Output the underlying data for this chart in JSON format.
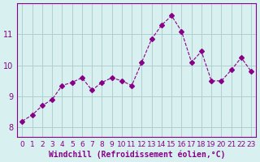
{
  "x": [
    0,
    1,
    2,
    3,
    4,
    5,
    6,
    7,
    8,
    9,
    10,
    11,
    12,
    13,
    14,
    15,
    16,
    17,
    18,
    19,
    20,
    21,
    22,
    23
  ],
  "y": [
    8.2,
    8.4,
    8.7,
    8.9,
    9.35,
    9.45,
    9.6,
    9.2,
    9.45,
    9.6,
    9.5,
    9.35,
    10.1,
    10.85,
    11.3,
    11.6,
    11.1,
    10.1,
    10.45,
    9.5,
    9.5,
    9.85,
    10.25,
    9.8
  ],
  "line_color": "#880088",
  "marker": "D",
  "marker_size": 3,
  "line_width": 0.8,
  "bg_color": "#d8f0f0",
  "grid_color": "#b0cece",
  "xlabel": "Windchill (Refroidissement éolien,°C)",
  "xlabel_color": "#880088",
  "tick_color": "#880088",
  "ylim": [
    7.7,
    12.0
  ],
  "xlim": [
    -0.5,
    23.5
  ],
  "yticks": [
    8,
    9,
    10,
    11
  ],
  "xticks": [
    0,
    1,
    2,
    3,
    4,
    5,
    6,
    7,
    8,
    9,
    10,
    11,
    12,
    13,
    14,
    15,
    16,
    17,
    18,
    19,
    20,
    21,
    22,
    23
  ]
}
